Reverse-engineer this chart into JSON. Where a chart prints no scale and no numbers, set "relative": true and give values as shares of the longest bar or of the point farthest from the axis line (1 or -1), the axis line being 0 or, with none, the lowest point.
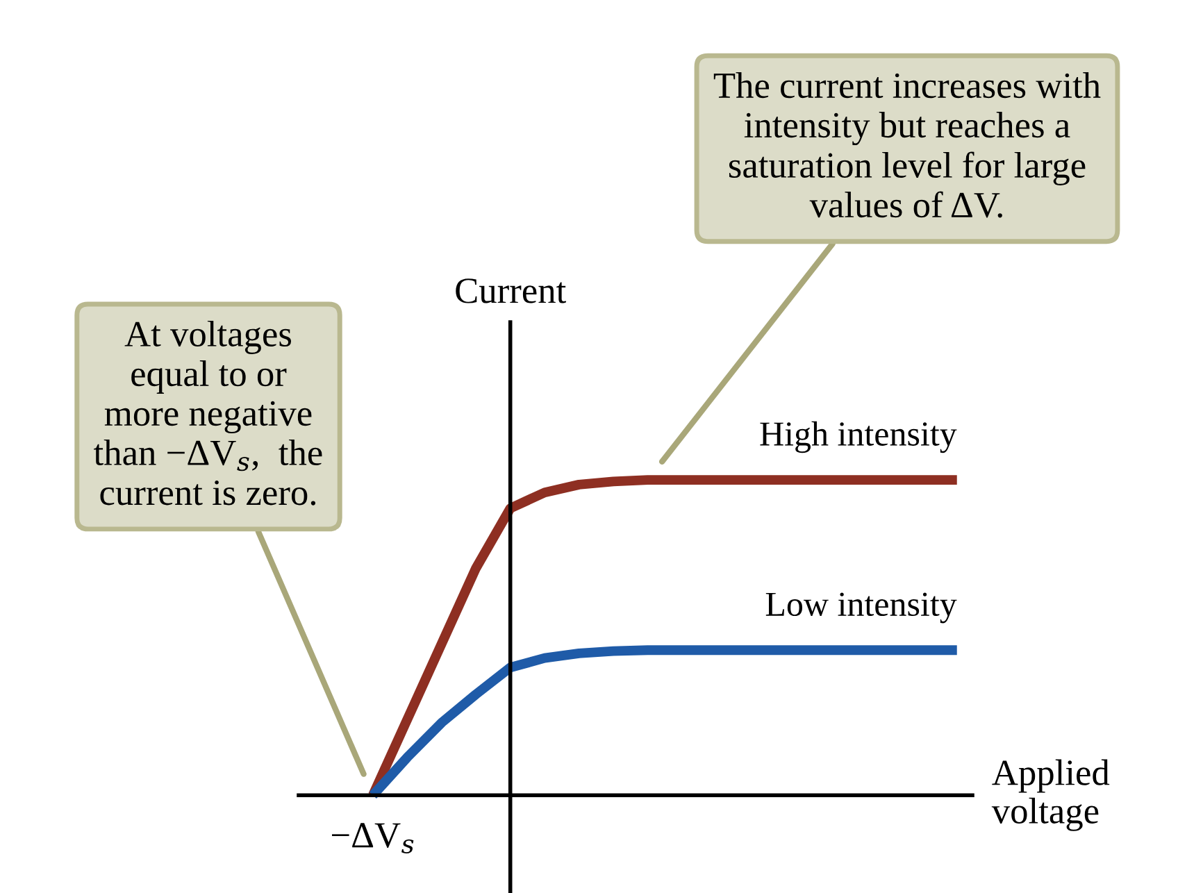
{
  "chart_data": {
    "type": "line",
    "relative": true,
    "xlabel": "Applied\nvoltage",
    "ylabel": "Current",
    "categories": [
      null,
      null,
      null,
      null,
      null,
      null,
      null,
      null,
      null,
      null,
      null,
      null,
      null,
      null,
      null,
      null,
      null,
      null
    ],
    "series": [
      {
        "name": "High intensity",
        "color": "#8e2f22",
        "values": [
          0,
          0.24,
          0.48,
          0.72,
          0.91,
          0.96,
          0.985,
          0.995,
          1,
          1,
          1,
          1,
          1,
          1,
          1,
          1,
          1,
          1
        ]
      },
      {
        "name": "Low intensity",
        "color": "#1f5ba8",
        "values": [
          0,
          0.12,
          0.23,
          0.32,
          0.405,
          0.435,
          0.45,
          0.457,
          0.46,
          0.46,
          0.46,
          0.46,
          0.46,
          0.46,
          0.46,
          0.46,
          0.46,
          0.46
        ]
      }
    ],
    "annotations": [
      "−ΔV$_{s}$",
      "At voltages\nequal to or\nmore negative\nthan −ΔV$_{s}$,  the\ncurrent is zero.",
      "The current increases with\nintensity but reaches a\nsaturation level for large\nvalues of ΔV."
    ],
    "legend": false,
    "marker": "none",
    "line_style": "solid"
  }
}
